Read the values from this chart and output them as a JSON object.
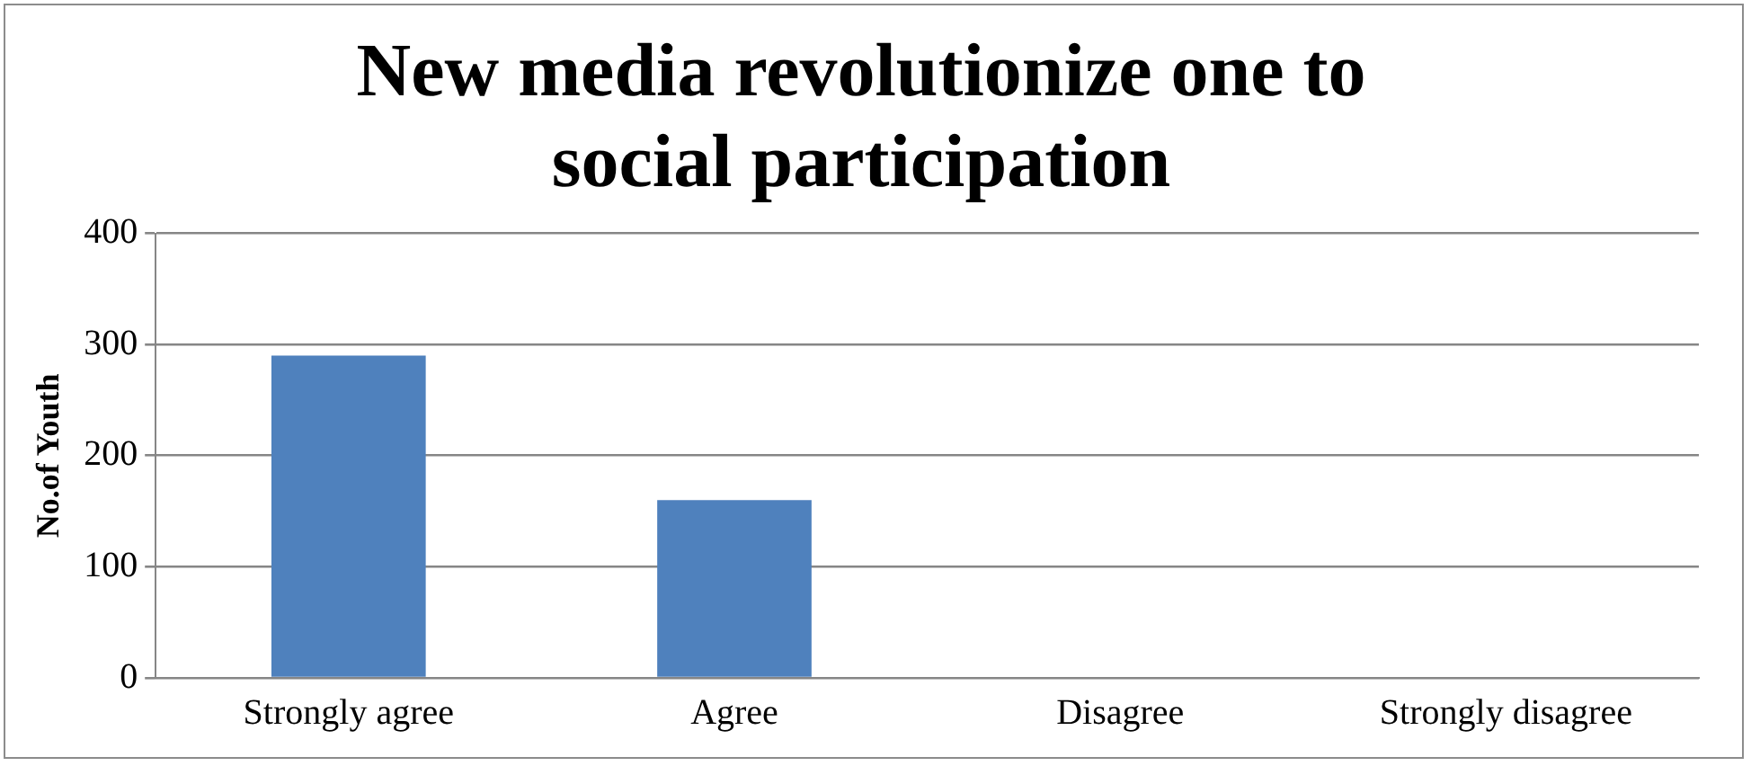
{
  "chart_data": {
    "type": "bar",
    "title": "New media revolutionize one to social participation",
    "ylabel": "No.of Youth",
    "categories": [
      "Strongly agree",
      "Agree",
      "Disagree",
      "Strongly disagree"
    ],
    "values": [
      290,
      160,
      0,
      0
    ],
    "color": "#4f81bd",
    "ylim": [
      0,
      400
    ],
    "yticks": [
      0,
      100,
      200,
      300,
      400
    ],
    "grid": "y",
    "legend": false
  }
}
